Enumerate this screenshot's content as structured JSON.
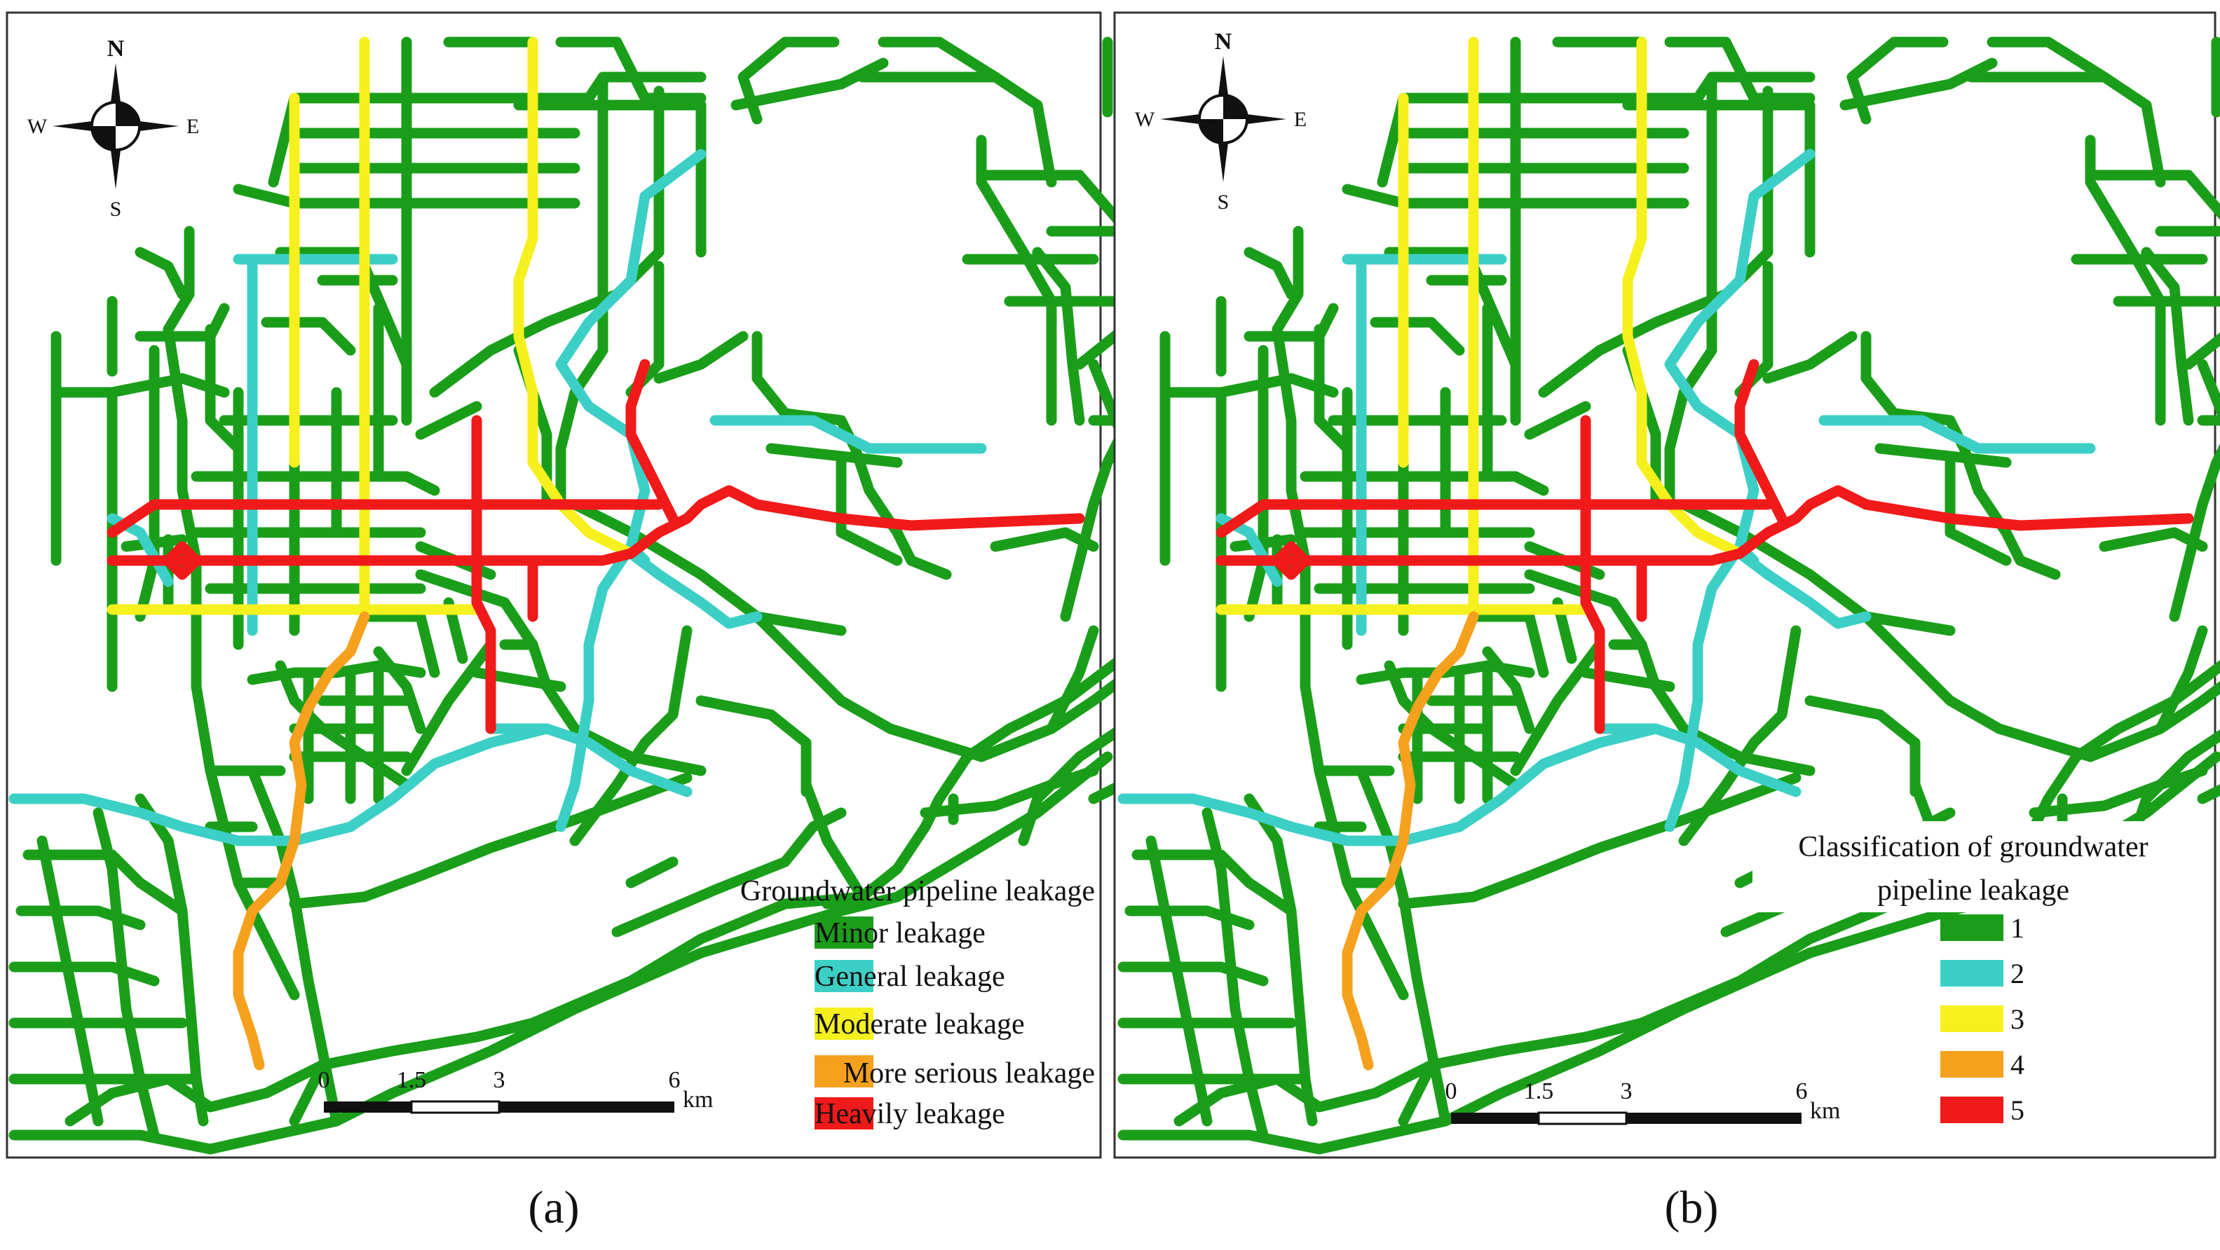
{
  "colors": {
    "minor": "#1a9e1a",
    "general": "#3ccfc6",
    "moderate": "#f5f01e",
    "more_serious": "#f5a11e",
    "heavily": "#f01a1a",
    "frame": "#333333",
    "text": "#1a1a1a"
  },
  "compass": {
    "north": "N",
    "south": "S",
    "east": "E",
    "west": "W",
    "east_b": "E"
  },
  "scale_bar": {
    "ticks": [
      "0",
      "1.5",
      "3",
      "6"
    ],
    "unit": "km"
  },
  "panel_a": {
    "caption": "(a)",
    "legend": {
      "title": "Groundwater  pipeline leakage",
      "items": [
        {
          "key": "minor",
          "label": "Minor leakage"
        },
        {
          "key": "general",
          "label": "General leakage"
        },
        {
          "key": "moderate",
          "label": "Moderate leakage"
        },
        {
          "key": "more_serious",
          "label": "More serious leakage"
        },
        {
          "key": "heavily",
          "label": "Heavily  leakage"
        }
      ]
    }
  },
  "panel_b": {
    "caption": "(b)",
    "legend": {
      "title_line1": "Classification of groundwater",
      "title_line2": "pipeline leakage",
      "items": [
        {
          "key": "minor",
          "label": "1"
        },
        {
          "key": "general",
          "label": "2"
        },
        {
          "key": "moderate",
          "label": "3"
        },
        {
          "key": "more_serious",
          "label": "4"
        },
        {
          "key": "heavily",
          "label": "5"
        }
      ]
    }
  }
}
